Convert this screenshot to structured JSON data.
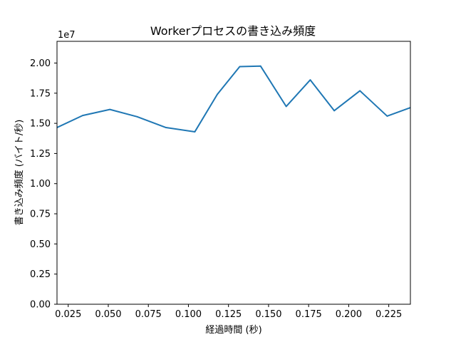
{
  "chart_data": {
    "type": "line",
    "title": "Workerプロセスの書き込み頻度",
    "xlabel": "経過時間 (秒)",
    "ylabel": "書き込み頻度 (バイト/秒)",
    "y_offset_label": "1e7",
    "xlim": [
      0.018,
      0.2385
    ],
    "ylim": [
      0.0,
      2.18
    ],
    "x_ticks": [
      0.025,
      0.05,
      0.075,
      0.1,
      0.125,
      0.15,
      0.175,
      0.2,
      0.225
    ],
    "x_tick_labels": [
      "0.025",
      "0.050",
      "0.075",
      "0.100",
      "0.125",
      "0.150",
      "0.175",
      "0.200",
      "0.225"
    ],
    "y_ticks": [
      0.0,
      0.25,
      0.5,
      0.75,
      1.0,
      1.25,
      1.5,
      1.75,
      2.0
    ],
    "y_tick_labels": [
      "0.00",
      "0.25",
      "0.50",
      "0.75",
      "1.00",
      "1.25",
      "1.50",
      "1.75",
      "2.00"
    ],
    "color": "#1f77b4",
    "grid": false,
    "series": [
      {
        "x": [
          0.018,
          0.034,
          0.051,
          0.068,
          0.086,
          0.104,
          0.118,
          0.132,
          0.145,
          0.161,
          0.176,
          0.191,
          0.207,
          0.224,
          0.2385
        ],
        "y": [
          1.465,
          1.565,
          1.615,
          1.555,
          1.465,
          1.43,
          1.74,
          1.97,
          1.975,
          1.64,
          1.86,
          1.605,
          1.77,
          1.56,
          1.63
        ]
      }
    ]
  }
}
